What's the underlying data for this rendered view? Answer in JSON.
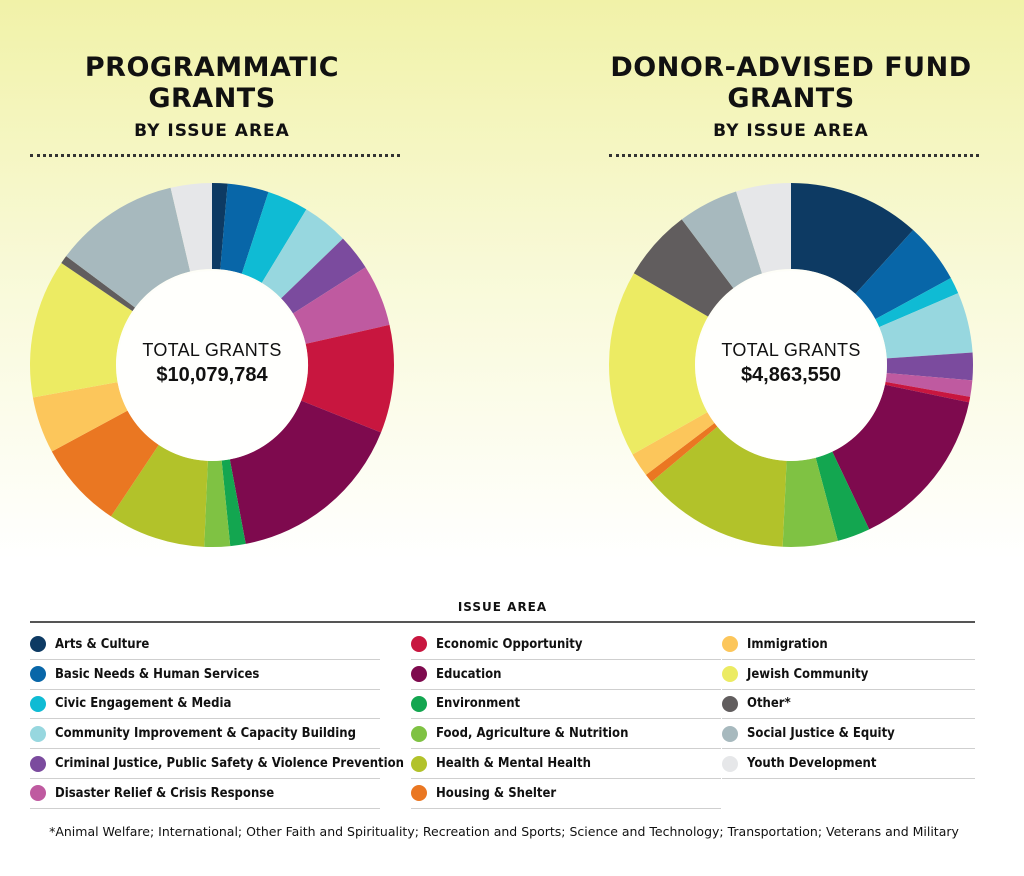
{
  "legend": {
    "heading": "ISSUE AREA",
    "items": [
      {
        "label": "Arts & Culture",
        "color": "#0d3a63"
      },
      {
        "label": "Basic Needs & Human Services",
        "color": "#0866a8"
      },
      {
        "label": "Civic Engagement & Media",
        "color": "#0fbbd4"
      },
      {
        "label": "Community Improvement & Capacity Building",
        "color": "#97d7df"
      },
      {
        "label": "Criminal Justice, Public Safety & Violence Prevention",
        "color": "#7b4b9e"
      },
      {
        "label": "Disaster Relief & Crisis Response",
        "color": "#bf5aa0"
      },
      {
        "label": "Economic Opportunity",
        "color": "#c8163f"
      },
      {
        "label": "Education",
        "color": "#7e0a4e"
      },
      {
        "label": "Environment",
        "color": "#13a650"
      },
      {
        "label": "Food, Agriculture & Nutrition",
        "color": "#7fc243"
      },
      {
        "label": "Health & Mental Health",
        "color": "#b2c22a"
      },
      {
        "label": "Housing & Shelter",
        "color": "#ea7722"
      },
      {
        "label": "Immigration",
        "color": "#fcc65b"
      },
      {
        "label": "Jewish Community",
        "color": "#eceb63"
      },
      {
        "label": "Other*",
        "color": "#615d5e"
      },
      {
        "label": "Social Justice & Equity",
        "color": "#a7b9be"
      },
      {
        "label": "Youth Development",
        "color": "#e6e7e9"
      }
    ]
  },
  "footnote": "*Animal Welfare; International; Other Faith and Spirituality; Recreation and Sports; Science and Technology; Transportation; Veterans and Military",
  "chart_data": [
    {
      "type": "pie",
      "title": "PROGRAMMATIC GRANTS",
      "subtitle": "BY ISSUE AREA",
      "center_caption": "TOTAL GRANTS",
      "center_total": "$10,079,784",
      "categories": [
        "Arts & Culture",
        "Basic Needs & Human Services",
        "Civic Engagement & Media",
        "Community Improvement & Capacity Building",
        "Criminal Justice, Public Safety & Violence Prevention",
        "Disaster Relief & Crisis Response",
        "Economic Opportunity",
        "Education",
        "Environment",
        "Food, Agriculture & Nutrition",
        "Health & Mental Health",
        "Housing & Shelter",
        "Immigration",
        "Jewish Community",
        "Other*",
        "Social Justice & Equity",
        "Youth Development"
      ],
      "values": [
        1.5,
        4.0,
        4.0,
        4.5,
        3.5,
        6.0,
        10.5,
        17.5,
        1.5,
        2.5,
        9.5,
        8.5,
        5.5,
        13.5,
        0.8,
        12.2,
        4.0
      ],
      "value_unit": "percent"
    },
    {
      "type": "pie",
      "title": "DONOR-ADVISED FUND GRANTS",
      "subtitle": "BY ISSUE AREA",
      "center_caption": "TOTAL GRANTS",
      "center_total": "$4,863,550",
      "categories": [
        "Arts & Culture",
        "Basic Needs & Human Services",
        "Civic Engagement & Media",
        "Community Improvement & Capacity Building",
        "Criminal Justice, Public Safety & Violence Prevention",
        "Disaster Relief & Crisis Response",
        "Economic Opportunity",
        "Education",
        "Environment",
        "Food, Agriculture & Nutrition",
        "Health & Mental Health",
        "Housing & Shelter",
        "Immigration",
        "Jewish Community",
        "Other*",
        "Social Justice & Equity",
        "Youth Development"
      ],
      "values": [
        12.0,
        5.5,
        1.5,
        5.5,
        2.5,
        1.5,
        0.5,
        15.0,
        3.0,
        5.0,
        13.5,
        0.8,
        2.2,
        17.0,
        6.5,
        5.5,
        5.0
      ],
      "value_unit": "percent"
    }
  ]
}
